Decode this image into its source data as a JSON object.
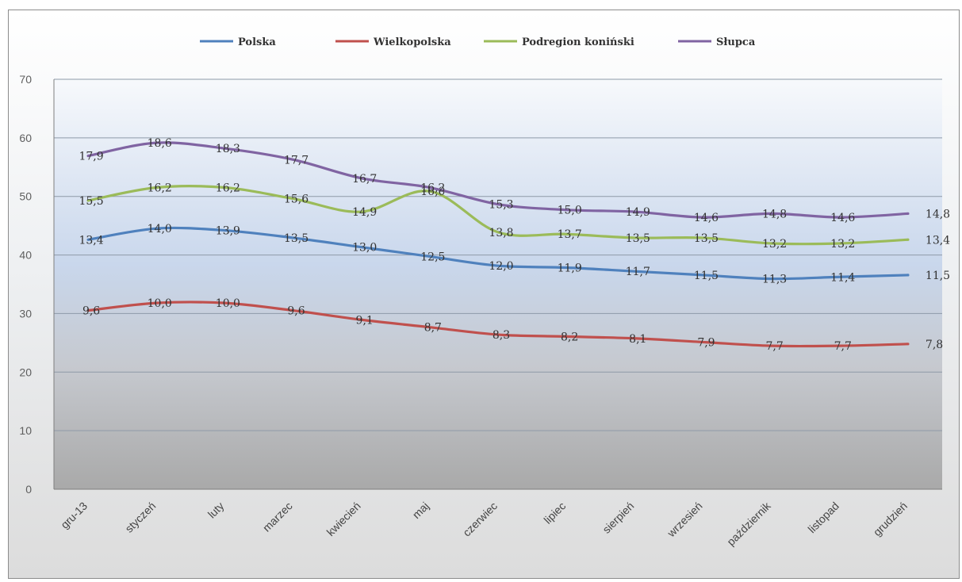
{
  "chart_data": {
    "type": "line",
    "categories": [
      "gru-13",
      "styczeń",
      "luty",
      "marzec",
      "kwiecień",
      "maj",
      "czerwiec",
      "lipiec",
      "sierpień",
      "wrzesień",
      "październik",
      "listopad",
      "grudzień"
    ],
    "ylim": [
      0,
      70
    ],
    "yticks": [
      "0",
      "10",
      "20",
      "30",
      "40",
      "50",
      "60",
      "70"
    ],
    "grid": true,
    "legend_position": "top",
    "series": [
      {
        "name": "Polska",
        "color": "#4f81bd",
        "values": [
          13.4,
          14.0,
          13.9,
          13.5,
          13.0,
          12.5,
          12.0,
          11.9,
          11.7,
          11.5,
          11.3,
          11.4,
          11.5
        ],
        "labels": [
          "13,4",
          "14,0",
          "13,9",
          "13,5",
          "13,0",
          "12,5",
          "12,0",
          "11,9",
          "11,7",
          "11,5",
          "11,3",
          "11,4",
          "11,5"
        ]
      },
      {
        "name": "Wielkopolska",
        "color": "#c0504d",
        "values": [
          9.6,
          10.0,
          10.0,
          9.6,
          9.1,
          8.7,
          8.3,
          8.2,
          8.1,
          7.9,
          7.7,
          7.7,
          7.8
        ],
        "labels": [
          "9,6",
          "10,0",
          "10,0",
          "9,6",
          "9,1",
          "8,7",
          "8,3",
          "8,2",
          "8,1",
          "7,9",
          "7,7",
          "7,7",
          "7,8"
        ]
      },
      {
        "name": "Podregion koniński",
        "color": "#9bbb59",
        "values": [
          15.5,
          16.2,
          16.2,
          15.6,
          14.9,
          16.0,
          13.8,
          13.7,
          13.5,
          13.5,
          13.2,
          13.2,
          13.4
        ],
        "labels": [
          "15,5",
          "16,2",
          "16,2",
          "15,6",
          "14,9",
          "16,0",
          "13,8",
          "13,7",
          "13,5",
          "13,5",
          "13,2",
          "13,2",
          "13,4"
        ]
      },
      {
        "name": "Słupca",
        "color": "#8064a2",
        "values": [
          17.9,
          18.6,
          18.3,
          17.7,
          16.7,
          16.2,
          15.3,
          15.0,
          14.9,
          14.6,
          14.8,
          14.6,
          14.8
        ],
        "labels": [
          "17,9",
          "18,6",
          "18,3",
          "17,7",
          "16,7",
          "16,2",
          "15,3",
          "15,0",
          "14,9",
          "14,6",
          "14,8",
          "14,6",
          "14,8"
        ]
      }
    ]
  }
}
